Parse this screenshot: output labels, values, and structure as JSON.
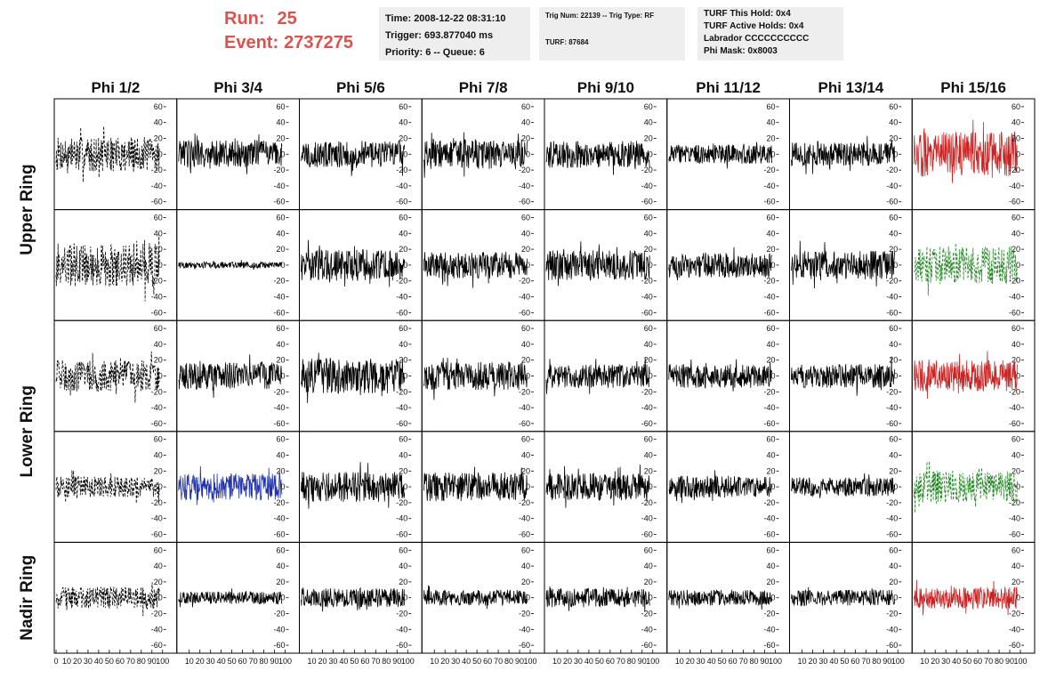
{
  "header": {
    "run_label": "Run:",
    "run_value": "25",
    "event_label": "Event:",
    "event_value": "2737275",
    "time_box": [
      "Time: 2008-12-22 08:31:10",
      "Trigger: 693.877040 ms",
      "Priority: 6 -- Queue: 6"
    ],
    "trig_box": [
      "Trig Num: 22139 -- Trig Type: RF",
      "TURF: 87684"
    ],
    "turf_box": [
      "TURF This Hold: 0x4",
      "TURF Active Holds: 0x4",
      "Labrador CCCCCCCCCC",
      "Phi Mask: 0x8003"
    ]
  },
  "colors": {
    "accent_red": "#d9534f",
    "trace_black": "#000000",
    "trace_red": "#cc2222",
    "trace_green": "#228822",
    "trace_blue": "#2233aa",
    "info_bg": "#eeeeee"
  },
  "chart_data": {
    "type": "line",
    "title": "",
    "columns": [
      "Phi 1/2",
      "Phi 3/4",
      "Phi 5/6",
      "Phi 7/8",
      "Phi 9/10",
      "Phi 11/12",
      "Phi 13/14",
      "Phi 15/16"
    ],
    "rings": [
      "Upper Ring",
      "Lower Ring",
      "Nadir Ring"
    ],
    "xlim": [
      0,
      100
    ],
    "ylim": [
      -70,
      70
    ],
    "y_ticks": [
      "60",
      "40",
      "20",
      "0",
      "-20",
      "-40",
      "-60"
    ],
    "x_tick_labels_first": [
      "0",
      "10",
      "20",
      "30",
      "40",
      "50",
      "60",
      "70",
      "80",
      "90",
      "100"
    ],
    "x_tick_labels_other": [
      "10",
      "20",
      "30",
      "40",
      "50",
      "60",
      "70",
      "80",
      "90",
      "100"
    ],
    "grid": false,
    "panels": [
      {
        "row": 0,
        "ring": "Upper Ring",
        "amplitudes": [
          22,
          18,
          17,
          19,
          17,
          12,
          15,
          28
        ],
        "styles": [
          "dash-black",
          "solid-black",
          "solid-black",
          "solid-black",
          "solid-black",
          "solid-black",
          "solid-black",
          "solid-red"
        ]
      },
      {
        "row": 1,
        "ring": "Upper Ring",
        "amplitudes": [
          28,
          4,
          20,
          17,
          19,
          16,
          18,
          24
        ],
        "styles": [
          "dash-black",
          "solid-black",
          "solid-black",
          "solid-black",
          "solid-black",
          "solid-black",
          "solid-black",
          "dash-green"
        ]
      },
      {
        "row": 2,
        "ring": "Lower Ring",
        "amplitudes": [
          20,
          17,
          22,
          18,
          15,
          15,
          15,
          20
        ],
        "styles": [
          "dash-black",
          "solid-black",
          "solid-black",
          "solid-black",
          "solid-black",
          "solid-black",
          "solid-black",
          "solid-red"
        ]
      },
      {
        "row": 3,
        "ring": "Lower Ring",
        "amplitudes": [
          13,
          17,
          19,
          18,
          17,
          14,
          12,
          20
        ],
        "styles": [
          "dash-black",
          "solid-blue",
          "solid-black",
          "solid-black",
          "solid-black",
          "solid-black",
          "solid-black",
          "dash-green"
        ]
      },
      {
        "row": 4,
        "ring": "Nadir Ring",
        "amplitudes": [
          14,
          8,
          12,
          10,
          12,
          10,
          10,
          14
        ],
        "styles": [
          "dash-black",
          "solid-black",
          "solid-black",
          "solid-black",
          "solid-black",
          "solid-black",
          "solid-black",
          "solid-red"
        ]
      }
    ]
  }
}
